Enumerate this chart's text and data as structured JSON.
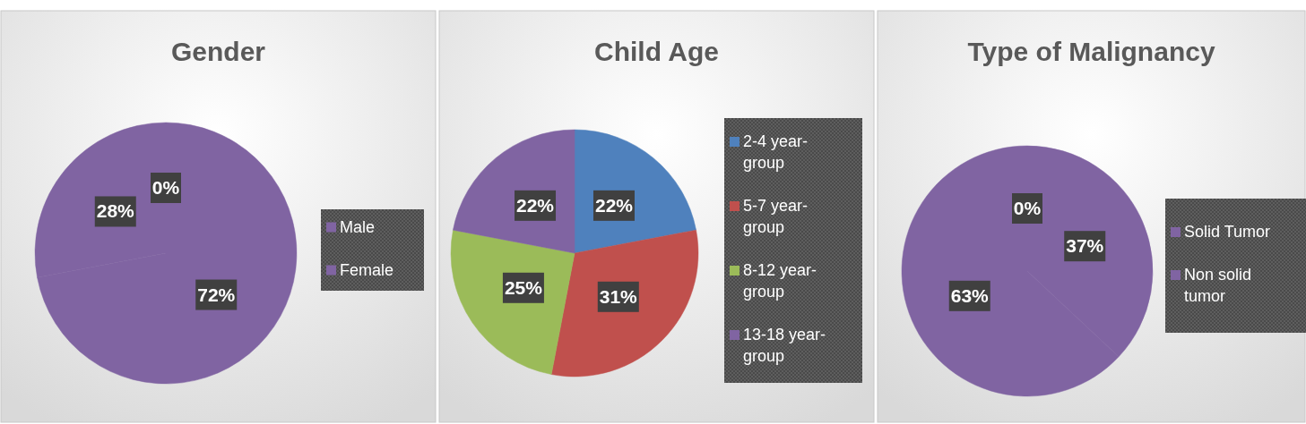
{
  "chart_data": [
    {
      "type": "pie",
      "title": "Gender",
      "categories": [
        "Male",
        "Female",
        null
      ],
      "values": [
        0,
        72,
        28
      ],
      "value_labels": [
        "0%",
        "72%",
        "28%"
      ],
      "colors": [
        "#8064a2",
        "#8064a2",
        "#8064a2"
      ],
      "legend": "right"
    },
    {
      "type": "pie",
      "title": "Child Age",
      "categories": [
        "2-4 year-group",
        "5-7 year-group",
        "8-12 year-group",
        "13-18 year-group"
      ],
      "values": [
        22,
        31,
        25,
        22
      ],
      "value_labels": [
        "22%",
        "31%",
        "25%",
        "22%"
      ],
      "colors": [
        "#4f81bd",
        "#c0504d",
        "#9bbb59",
        "#8064a2"
      ],
      "legend": "right"
    },
    {
      "type": "pie",
      "title": "Type of Malignancy",
      "categories": [
        "Solid Tumor",
        "Non solid tumor",
        null
      ],
      "values": [
        0,
        37,
        63
      ],
      "value_labels": [
        "0%",
        "37%",
        "63%"
      ],
      "colors": [
        "#8064a2",
        "#8064a2",
        "#8064a2"
      ],
      "legend": "right"
    }
  ]
}
